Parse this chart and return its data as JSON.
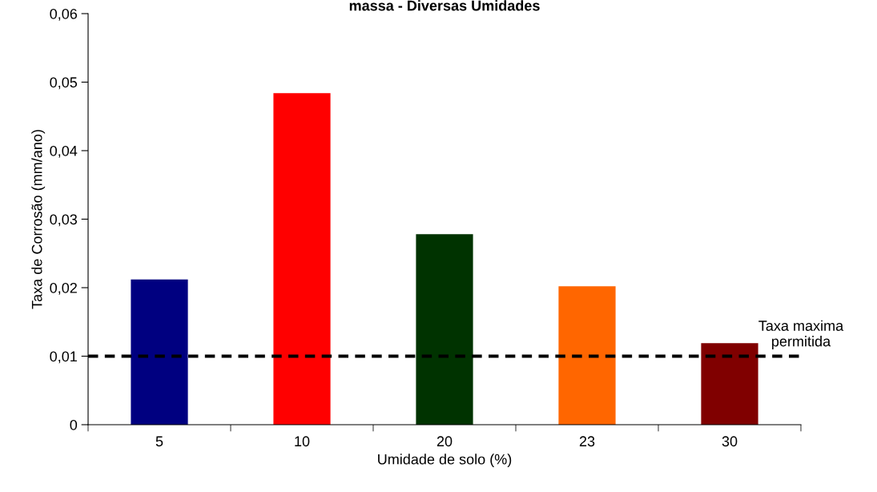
{
  "chart_data": {
    "type": "bar",
    "title": "massa - Diversas Umidades",
    "xlabel": "Umidade de solo (%)",
    "ylabel": "Taxa de Corrosão (mm/ano)",
    "categories": [
      "5",
      "10",
      "20",
      "23",
      "30"
    ],
    "values": [
      0.0212,
      0.0484,
      0.0278,
      0.0202,
      0.0119
    ],
    "colors": [
      "#000080",
      "#ff0000",
      "#003300",
      "#ff6600",
      "#800000"
    ],
    "ylim": [
      0,
      0.06
    ],
    "yticks": [
      0,
      {
        "value": 0.01,
        "label": "0,01"
      },
      {
        "value": 0.02,
        "label": "0,02"
      },
      {
        "value": 0.03,
        "label": "0,03"
      },
      {
        "value": 0.04,
        "label": "0,04"
      },
      {
        "value": 0.05,
        "label": "0,05"
      },
      {
        "value": 0.06,
        "label": "0,06"
      }
    ],
    "ref_lines": [
      {
        "axis": "y",
        "value": 0.01,
        "label": "Taxa maxima\npermitida",
        "color": "#000000",
        "line_style": "dashed"
      }
    ],
    "grid": false,
    "legend": false
  }
}
